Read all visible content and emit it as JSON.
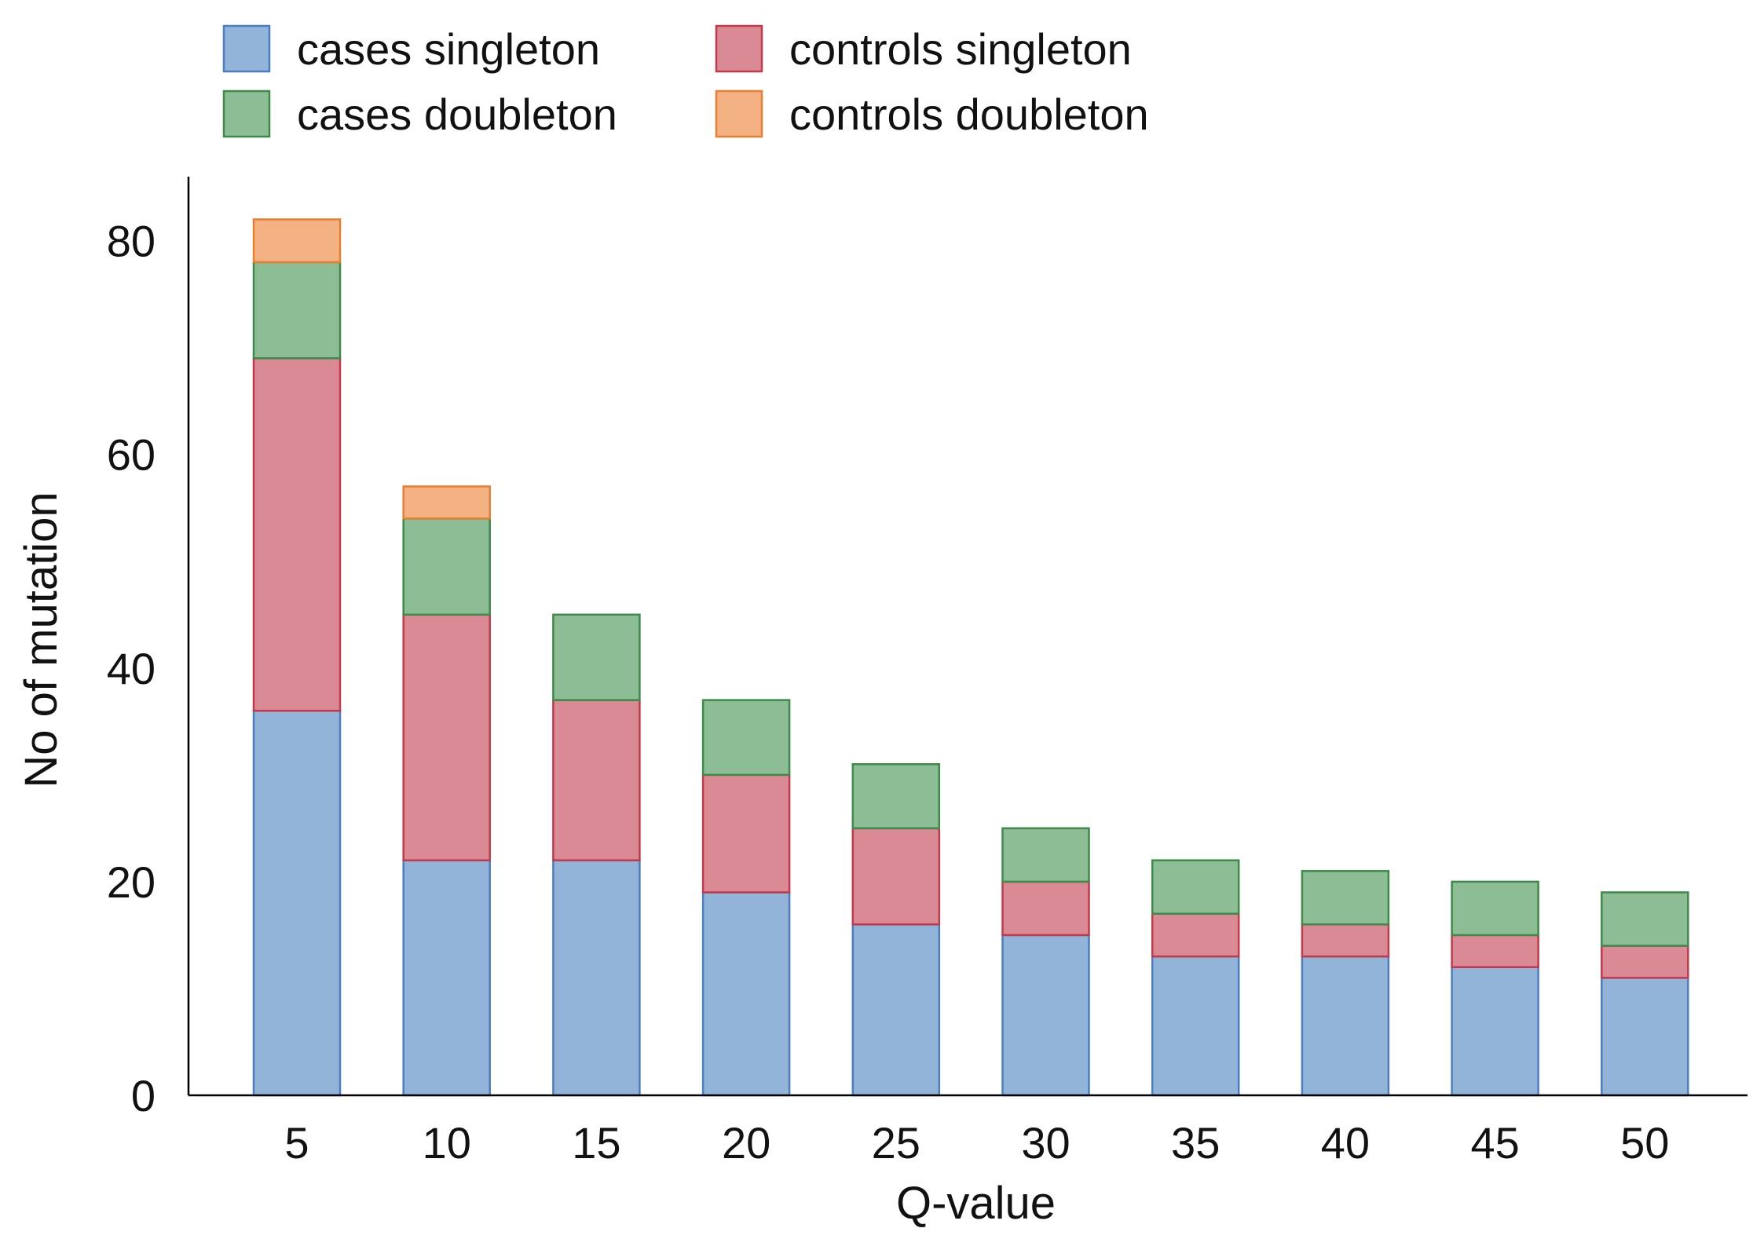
{
  "chart_data": {
    "type": "bar",
    "stacked": true,
    "title": "",
    "xlabel": "Q-value",
    "ylabel": "No of mutation",
    "categories": [
      "5",
      "10",
      "15",
      "20",
      "25",
      "30",
      "35",
      "40",
      "45",
      "50"
    ],
    "ylim": [
      0,
      86
    ],
    "yticks": [
      0,
      20,
      40,
      60,
      80
    ],
    "grid": false,
    "legend_position": "top-left",
    "series": [
      {
        "name": "cases singleton",
        "key": "cases-singleton",
        "color": "#92b4d8",
        "stroke": "#4a7ec0",
        "values": [
          36,
          22,
          22,
          19,
          16,
          15,
          13,
          13,
          12,
          11
        ]
      },
      {
        "name": "controls singleton",
        "key": "controls-singleton",
        "color": "#d98a94",
        "stroke": "#c3394b",
        "values": [
          33,
          23,
          15,
          11,
          9,
          5,
          4,
          3,
          3,
          3
        ]
      },
      {
        "name": "cases doubleton",
        "key": "cases-doubleton",
        "color": "#8dbd95",
        "stroke": "#3d8a4a",
        "values": [
          9,
          9,
          8,
          7,
          6,
          5,
          5,
          5,
          5,
          5
        ]
      },
      {
        "name": "controls doubleton",
        "key": "controls-doubleton",
        "color": "#f4b183",
        "stroke": "#e87e2e",
        "values": [
          4,
          3,
          0,
          0,
          0,
          0,
          0,
          0,
          0,
          0
        ]
      }
    ],
    "legend_order": [
      "cases-singleton",
      "controls-singleton",
      "cases-doubleton",
      "controls-doubleton"
    ]
  }
}
